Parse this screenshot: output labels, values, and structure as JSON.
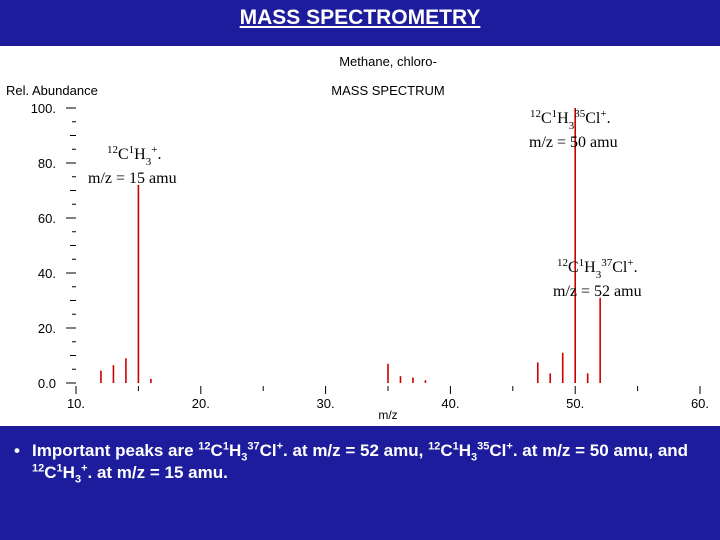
{
  "slide": {
    "title": "MASS SPECTROMETRY",
    "bullet": {
      "marker": "•",
      "parts": [
        {
          "t": "Important peaks are "
        },
        {
          "t": "12",
          "s": "sup"
        },
        {
          "t": "C"
        },
        {
          "t": "1",
          "s": "sup"
        },
        {
          "t": "H"
        },
        {
          "t": "3",
          "s": "sub"
        },
        {
          "t": "37",
          "s": "sup"
        },
        {
          "t": "Cl"
        },
        {
          "t": "+",
          "s": "sup"
        },
        {
          "t": ". at m/z = 52 amu, "
        },
        {
          "t": "12",
          "s": "sup"
        },
        {
          "t": "C"
        },
        {
          "t": "1",
          "s": "sup"
        },
        {
          "t": "H"
        },
        {
          "t": "3",
          "s": "sub"
        },
        {
          "t": "35",
          "s": "sup"
        },
        {
          "t": "Cl"
        },
        {
          "t": "+",
          "s": "sup"
        },
        {
          "t": ". at m/z = 50 amu, and "
        },
        {
          "t": "12",
          "s": "sup"
        },
        {
          "t": "C"
        },
        {
          "t": "1",
          "s": "sup"
        },
        {
          "t": "H"
        },
        {
          "t": "3",
          "s": "sub"
        },
        {
          "t": "+",
          "s": "sup"
        },
        {
          "t": ". at m/z = 15 amu."
        }
      ]
    }
  },
  "chart_data": {
    "type": "bar",
    "compound": "Methane, chloro-",
    "title": "MASS SPECTRUM",
    "xlabel": "m/z",
    "ylabel": "Rel. Abundance",
    "xlim": [
      10,
      60
    ],
    "ylim": [
      0,
      100
    ],
    "x_ticks": [
      10,
      20,
      30,
      40,
      50,
      60
    ],
    "x_tick_labels": [
      "10.",
      "20.",
      "30.",
      "40.",
      "50.",
      "60."
    ],
    "y_ticks": [
      0,
      20,
      40,
      60,
      80,
      100
    ],
    "y_tick_labels": [
      "0.0",
      "20.",
      "40.",
      "60.",
      "80.",
      "100."
    ],
    "grid": false,
    "bar_color": "#cc0000",
    "series": [
      {
        "x": [
          12,
          13,
          14,
          15,
          16,
          35,
          36,
          37,
          38,
          47,
          48,
          49,
          50,
          51,
          52
        ],
        "values": [
          4.5,
          6.5,
          9,
          72,
          1.5,
          7,
          2.5,
          2,
          1,
          7.5,
          3.5,
          11,
          100,
          3.5,
          31
        ]
      }
    ],
    "annotations": [
      {
        "peak_x": 15,
        "ion": [
          {
            "t": "12",
            "s": "sup"
          },
          {
            "t": "C"
          },
          {
            "t": "1",
            "s": "sup"
          },
          {
            "t": "H"
          },
          {
            "t": "3",
            "s": "sub"
          },
          {
            "t": "+",
            "s": "sup"
          },
          {
            "t": "."
          }
        ],
        "mass": "m/z = 15 amu"
      },
      {
        "peak_x": 50,
        "ion": [
          {
            "t": "12",
            "s": "sup"
          },
          {
            "t": "C"
          },
          {
            "t": "1",
            "s": "sup"
          },
          {
            "t": "H"
          },
          {
            "t": "3",
            "s": "sub"
          },
          {
            "t": "35",
            "s": "sup"
          },
          {
            "t": "Cl"
          },
          {
            "t": "+",
            "s": "sup"
          },
          {
            "t": "."
          }
        ],
        "mass": "m/z = 50 amu"
      },
      {
        "peak_x": 52,
        "ion": [
          {
            "t": "12",
            "s": "sup"
          },
          {
            "t": "C"
          },
          {
            "t": "1",
            "s": "sup"
          },
          {
            "t": "H"
          },
          {
            "t": "3",
            "s": "sub"
          },
          {
            "t": "37",
            "s": "sup"
          },
          {
            "t": "Cl"
          },
          {
            "t": "+",
            "s": "sup"
          },
          {
            "t": "."
          }
        ],
        "mass": "m/z = 52 amu"
      }
    ]
  }
}
